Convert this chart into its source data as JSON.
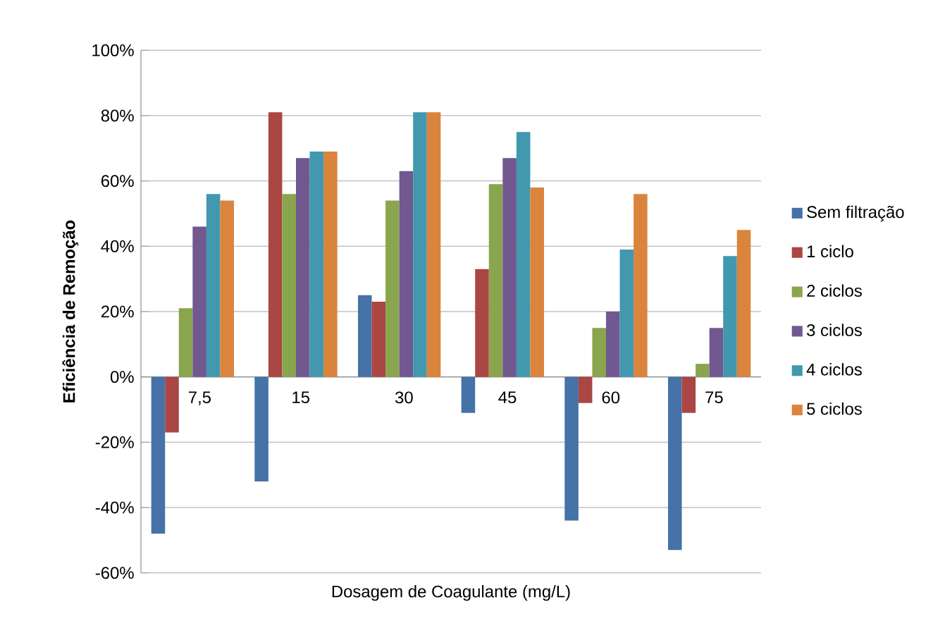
{
  "chart_data": {
    "type": "bar",
    "xlabel": "Dosagem de Coagulante (mg/L)",
    "ylabel": "Eficiência de Remoção",
    "categories": [
      "7,5",
      "15",
      "30",
      "45",
      "60",
      "75"
    ],
    "series": [
      {
        "name": "Sem filtração",
        "color": "#4572a7",
        "values": [
          -48,
          -32,
          25,
          -11,
          -44,
          -53
        ]
      },
      {
        "name": "1 ciclo",
        "color": "#aa4643",
        "values": [
          -17,
          81,
          23,
          33,
          -8,
          -11
        ]
      },
      {
        "name": "2 ciclos",
        "color": "#89a54e",
        "values": [
          21,
          56,
          54,
          59,
          15,
          4
        ]
      },
      {
        "name": "3 ciclos",
        "color": "#71588f",
        "values": [
          46,
          67,
          63,
          67,
          20,
          15
        ]
      },
      {
        "name": "4 ciclos",
        "color": "#4198af",
        "values": [
          56,
          69,
          81,
          75,
          39,
          37
        ]
      },
      {
        "name": "5 ciclos",
        "color": "#db843d",
        "values": [
          54,
          69,
          81,
          58,
          56,
          45
        ]
      }
    ],
    "ylim": [
      -60,
      100
    ],
    "yticks": [
      {
        "value": -60,
        "label": "-60%"
      },
      {
        "value": -40,
        "label": "-40%"
      },
      {
        "value": -20,
        "label": "-20%"
      },
      {
        "value": 0,
        "label": "0%"
      },
      {
        "value": 20,
        "label": "20%"
      },
      {
        "value": 40,
        "label": "40%"
      },
      {
        "value": 60,
        "label": "60%"
      },
      {
        "value": 80,
        "label": "80%"
      },
      {
        "value": 100,
        "label": "100%"
      }
    ],
    "grid": "y",
    "legend": "right"
  }
}
